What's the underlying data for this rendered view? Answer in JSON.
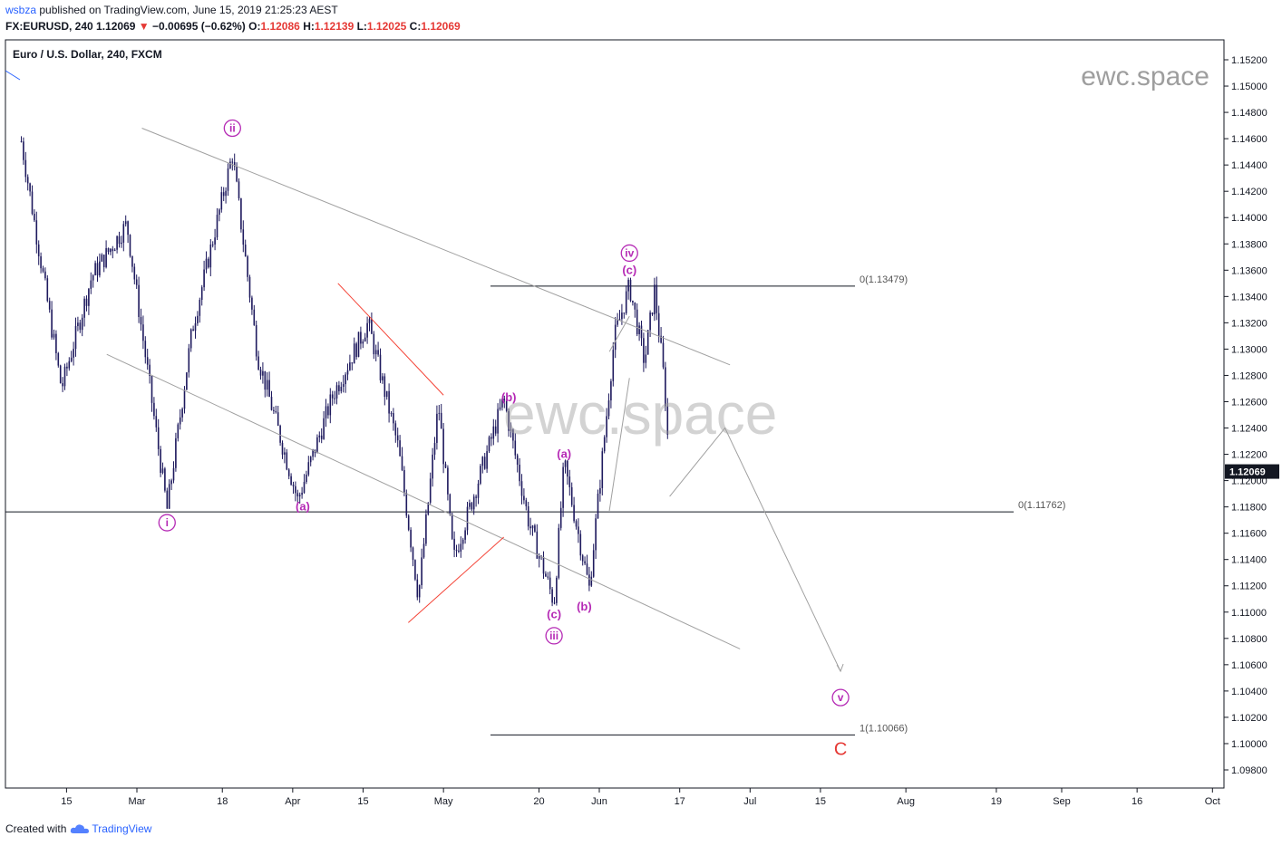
{
  "header": {
    "user": "wsbza",
    "published_text": "published on TradingView.com, June 15, 2019 21:25:23 AEST",
    "symbol_line_prefix": "FX:EURUSD, 240",
    "last": "1.12069",
    "change": "−0.00695 (−0.62%)",
    "open_label": "O:",
    "open": "1.12086",
    "high_label": "H:",
    "high": "1.12139",
    "low_label": "L:",
    "low": "1.12025",
    "close_label": "C:",
    "close": "1.12069"
  },
  "chart_title": "Euro / U.S. Dollar, 240, FXCM",
  "watermark_small": "ewc.space",
  "watermark_big": "ewc.space",
  "footer": {
    "created_with": "Created with",
    "brand": "TradingView"
  },
  "colors": {
    "candle": "#1e1a5e",
    "wave_label": "#b52ab5",
    "red_line": "#f44336",
    "gray_line": "#a0a0a0",
    "price_tag_bg": "#131722",
    "wave_c": "#e53935"
  },
  "chart_data": {
    "type": "candlestick",
    "title": "Euro / U.S. Dollar, 240, FXCM",
    "ylim": [
      1.097,
      1.1535
    ],
    "y_ticks": [
      "1.15200",
      "1.15000",
      "1.14800",
      "1.14600",
      "1.14400",
      "1.14200",
      "1.14000",
      "1.13800",
      "1.13600",
      "1.13400",
      "1.13200",
      "1.13000",
      "1.12800",
      "1.12600",
      "1.12400",
      "1.12200",
      "1.12000",
      "1.11800",
      "1.11600",
      "1.11400",
      "1.11200",
      "1.11000",
      "1.10800",
      "1.10600",
      "1.10400",
      "1.10200",
      "1.10000",
      "1.09800"
    ],
    "x_tick_labels": [
      "15",
      "Mar",
      "18",
      "Apr",
      "15",
      "May",
      "20",
      "Jun",
      "17",
      "Jul",
      "15",
      "Aug",
      "19",
      "Sep",
      "16",
      "Oct"
    ],
    "last_price_tag": "1.12069",
    "price_path": [
      {
        "t": "2019-02-06",
        "p": 1.1458
      },
      {
        "t": "2019-02-14",
        "p": 1.127
      },
      {
        "t": "2019-02-20",
        "p": 1.1355
      },
      {
        "t": "2019-02-27",
        "p": 1.1395
      },
      {
        "t": "2019-03-07",
        "p": 1.1178
      },
      {
        "t": "2019-03-12",
        "p": 1.1315
      },
      {
        "t": "2019-03-20",
        "p": 1.1448
      },
      {
        "t": "2019-03-25",
        "p": 1.1295
      },
      {
        "t": "2019-04-02",
        "p": 1.1185
      },
      {
        "t": "2019-04-09",
        "p": 1.1265
      },
      {
        "t": "2019-04-16",
        "p": 1.132
      },
      {
        "t": "2019-04-22",
        "p": 1.1225
      },
      {
        "t": "2019-04-26",
        "p": 1.1112
      },
      {
        "t": "2019-04-30",
        "p": 1.1258
      },
      {
        "t": "2019-05-03",
        "p": 1.114
      },
      {
        "t": "2019-05-13",
        "p": 1.1262
      },
      {
        "t": "2019-05-18",
        "p": 1.1168
      },
      {
        "t": "2019-05-23",
        "p": 1.1107
      },
      {
        "t": "2019-05-25",
        "p": 1.1213
      },
      {
        "t": "2019-05-30",
        "p": 1.1118
      },
      {
        "t": "2019-06-04",
        "p": 1.1309
      },
      {
        "t": "2019-06-07",
        "p": 1.1348
      },
      {
        "t": "2019-06-10",
        "p": 1.129
      },
      {
        "t": "2019-06-12",
        "p": 1.1345
      },
      {
        "t": "2019-06-14",
        "p": 1.1272
      },
      {
        "t": "2019-06-15",
        "p": 1.1207
      }
    ],
    "levels": [
      {
        "label": "0(1.13479)",
        "value": 1.13479
      },
      {
        "label": "0(1.11762)",
        "value": 1.11762
      },
      {
        "label": "1(1.10066)",
        "value": 1.10066
      }
    ],
    "trendlines": [
      {
        "name": "upper-channel",
        "color": "gray",
        "from": {
          "t": "2019-03-02",
          "p": 1.1468
        },
        "to": {
          "t": "2019-06-27",
          "p": 1.1288
        }
      },
      {
        "name": "lower-channel",
        "color": "gray",
        "from": {
          "t": "2019-02-23",
          "p": 1.1296
        },
        "to": {
          "t": "2019-06-29",
          "p": 1.1072
        }
      },
      {
        "name": "red-upper",
        "color": "red",
        "from": {
          "t": "2019-04-10",
          "p": 1.135
        },
        "to": {
          "t": "2019-05-01",
          "p": 1.1265
        }
      },
      {
        "name": "red-lower",
        "color": "red",
        "from": {
          "t": "2019-04-24",
          "p": 1.1092
        },
        "to": {
          "t": "2019-05-13",
          "p": 1.1157
        }
      }
    ],
    "projection_path": [
      {
        "t": "2019-06-15",
        "p": 1.1188
      },
      {
        "t": "2019-06-26",
        "p": 1.124
      },
      {
        "t": "2019-07-19",
        "p": 1.1055
      }
    ],
    "wave_labels": [
      {
        "text": "i",
        "circled": true,
        "t": "2019-03-07",
        "p": 1.1168
      },
      {
        "text": "ii",
        "circled": true,
        "t": "2019-03-20",
        "p": 1.1468
      },
      {
        "text": "(a)",
        "circled": false,
        "t": "2019-04-03",
        "p": 1.118
      },
      {
        "text": "(b)",
        "circled": false,
        "t": "2019-05-14",
        "p": 1.1263
      },
      {
        "text": "(a)",
        "circled": false,
        "t": "2019-05-25",
        "p": 1.122
      },
      {
        "text": "(c)",
        "circled": false,
        "t": "2019-05-23",
        "p": 1.1098
      },
      {
        "text": "iii",
        "circled": true,
        "t": "2019-05-23",
        "p": 1.1082
      },
      {
        "text": "(b)",
        "circled": false,
        "t": "2019-05-29",
        "p": 1.1104
      },
      {
        "text": "(c)",
        "circled": false,
        "t": "2019-06-07",
        "p": 1.136
      },
      {
        "text": "iv",
        "circled": true,
        "t": "2019-06-07",
        "p": 1.1373
      },
      {
        "text": "v",
        "circled": true,
        "t": "2019-07-19",
        "p": 1.1035
      },
      {
        "text": "C",
        "circled": false,
        "t": "2019-07-19",
        "p": 1.0997,
        "color": "red"
      }
    ]
  }
}
